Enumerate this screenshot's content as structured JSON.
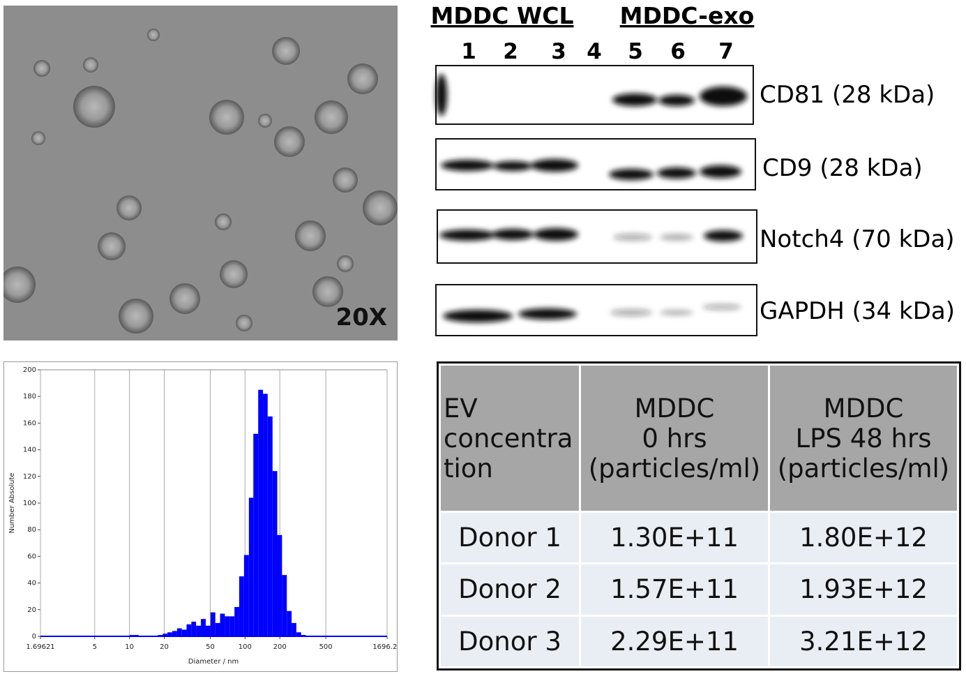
{
  "microscopy": {
    "magnification": "20X"
  },
  "western_blot": {
    "groups": [
      "MDDC WCL",
      "MDDC-exo"
    ],
    "lanes": [
      "1",
      "2",
      "3",
      "4",
      "5",
      "6",
      "7"
    ],
    "bands": [
      "CD81 (28 kDa)",
      "CD9 (28 kDa)",
      "Notch4 (70 kDa)",
      "GAPDH (34 kDa)"
    ]
  },
  "chart_data": {
    "type": "histogram",
    "x_label": "Diameter / nm",
    "y_label": "Number Absolute",
    "color": "#0000ff",
    "log_x": true,
    "grid": true,
    "bins": [
      10,
      11,
      12,
      13.3,
      14.6,
      16,
      17.6,
      19.4,
      21.3,
      23.4,
      25.8,
      28.4,
      31.2,
      34.3,
      37.7,
      41.5,
      45.7,
      50.3,
      55.3,
      60.8,
      66.9,
      73.6,
      81,
      89,
      98,
      108,
      118,
      130,
      143,
      157,
      173,
      190,
      209,
      230,
      253,
      278,
      306,
      336
    ],
    "values": [
      1,
      1,
      0,
      0,
      0,
      0,
      1,
      2,
      3,
      4,
      6,
      5,
      9,
      11,
      8,
      13,
      8,
      18,
      10,
      17,
      15,
      15,
      22,
      45,
      61,
      104,
      152,
      185,
      182,
      165,
      124,
      76,
      46,
      19,
      10,
      3,
      1
    ],
    "xlim": [
      1.69621,
      1696.21
    ],
    "xticks": [
      1.69621,
      5,
      10,
      20,
      50,
      100,
      200,
      500,
      1696.21
    ],
    "ylim": [
      0,
      200
    ],
    "yticks": [
      0,
      20,
      40,
      60,
      80,
      100,
      120,
      140,
      160,
      180,
      200
    ]
  },
  "table": {
    "header": [
      "EV\nconcentration",
      "MDDC\n0 hrs\n(particles/ml)",
      "MDDC\nLPS  48 hrs\n(particles/ml)"
    ],
    "rows": [
      [
        "Donor 1",
        "1.30E+11",
        "1.80E+12"
      ],
      [
        "Donor 2",
        "1.57E+11",
        "1.93E+12"
      ],
      [
        "Donor 3",
        "2.29E+11",
        "3.21E+12"
      ]
    ]
  }
}
